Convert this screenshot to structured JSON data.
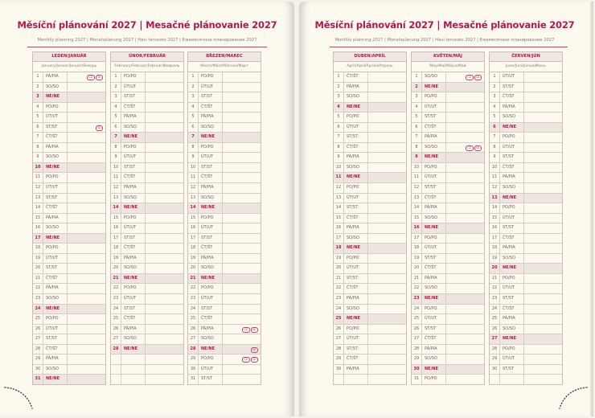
{
  "spread": {
    "left": {
      "title": "Měsíční plánování 2027 | Mesačné plánovanie 2027",
      "subtitle": "Monthly planning 2027 | Monatsplanung 2027 | Havi tervezés 2027 | Ежемесячное планирование 2027"
    },
    "right": {
      "title": "Měsíční plánování 2027 | Mesačné plánovanie 2027",
      "subtitle": "Monthly planning 2027 | Monatsplanung 2027 | Havi tervezés 2027 | Ежемесячное планирование 2027"
    }
  },
  "colors": {
    "accent": "#b3174f",
    "paper": "#fcf9ef",
    "sunday_fill": "#efe5df"
  },
  "sunday_label": "NE/NE",
  "months": [
    {
      "name": "LEDEN/JANUÁR",
      "subtitle": "January/Januar/Január/Январь",
      "days": [
        "PÁ/PIA",
        "SO/SO",
        "NE/NE",
        "PO/PO",
        "ÚT/UT",
        "ST/ST",
        "ČT/ŠT",
        "PÁ/PIA",
        "SO/SO",
        "NE/NE",
        "PO/PO",
        "ÚT/UT",
        "ST/ST",
        "ČT/ŠT",
        "PÁ/PIA",
        "SO/SO",
        "NE/NE",
        "PO/PO",
        "ÚT/UT",
        "ST/ST",
        "ČT/ŠT",
        "PÁ/PIA",
        "SO/SO",
        "NE/NE",
        "PO/PO",
        "ÚT/UT",
        "ST/ST",
        "ČT/ŠT",
        "PÁ/PIA",
        "SO/SO",
        "NE/NE"
      ],
      "holidays": {
        "1": [
          "CZ",
          "SK"
        ],
        "6": [
          "SK"
        ]
      }
    },
    {
      "name": "ÚNOR/FEBRUÁR",
      "subtitle": "February/Februar/Február/Февраль",
      "days": [
        "PO/PO",
        "ÚT/UT",
        "ST/ST",
        "ČT/ŠT",
        "PÁ/PIA",
        "SO/SO",
        "NE/NE",
        "PO/PO",
        "ÚT/UT",
        "ST/ST",
        "ČT/ŠT",
        "PÁ/PIA",
        "SO/SO",
        "NE/NE",
        "PO/PO",
        "ÚT/UT",
        "ST/ST",
        "ČT/ŠT",
        "PÁ/PIA",
        "SO/SO",
        "NE/NE",
        "PO/PO",
        "ÚT/UT",
        "ST/ST",
        "ČT/ŠT",
        "PÁ/PIA",
        "SO/SO",
        "NE/NE"
      ],
      "holidays": {}
    },
    {
      "name": "BŘEZEN/MAREC",
      "subtitle": "March/März/Március/Март",
      "days": [
        "PO/PO",
        "ÚT/UT",
        "ST/ST",
        "ČT/ŠT",
        "PÁ/PIA",
        "SO/SO",
        "NE/NE",
        "PO/PO",
        "ÚT/UT",
        "ST/ST",
        "ČT/ŠT",
        "PÁ/PIA",
        "SO/SO",
        "NE/NE",
        "PO/PO",
        "ÚT/UT",
        "ST/ST",
        "ČT/ŠT",
        "PÁ/PIA",
        "SO/SO",
        "NE/NE",
        "PO/PO",
        "ÚT/UT",
        "ST/ST",
        "ČT/ŠT",
        "PÁ/PIA",
        "SO/SO",
        "NE/NE",
        "PO/PO",
        "ÚT/UT",
        "ST/ST"
      ],
      "holidays": {
        "26": [
          "CZ",
          "SK"
        ],
        "28": [
          "SK"
        ],
        "29": [
          "CZ",
          "SK"
        ]
      }
    },
    {
      "name": "DUBEN/APRÍL",
      "subtitle": "April/April/Április/Апрель",
      "days": [
        "ČT/ŠT",
        "PÁ/PIA",
        "SO/SO",
        "NE/NE",
        "PO/PO",
        "ÚT/UT",
        "ST/ST",
        "ČT/ŠT",
        "PÁ/PIA",
        "SO/SO",
        "NE/NE",
        "PO/PO",
        "ÚT/UT",
        "ST/ST",
        "ČT/ŠT",
        "PÁ/PIA",
        "SO/SO",
        "NE/NE",
        "PO/PO",
        "ÚT/UT",
        "ST/ST",
        "ČT/ŠT",
        "PÁ/PIA",
        "SO/SO",
        "NE/NE",
        "PO/PO",
        "ÚT/UT",
        "ST/ST",
        "ČT/ŠT",
        "PÁ/PIA"
      ],
      "holidays": {}
    },
    {
      "name": "KVĚTEN/MÁJ",
      "subtitle": "May/Mai/Május/Май",
      "days": [
        "SO/SO",
        "NE/NE",
        "PO/PO",
        "ÚT/UT",
        "ST/ST",
        "ČT/ŠT",
        "PÁ/PIA",
        "SO/SO",
        "NE/NE",
        "PO/PO",
        "ÚT/UT",
        "ST/ST",
        "ČT/ŠT",
        "PÁ/PIA",
        "SO/SO",
        "NE/NE",
        "PO/PO",
        "ÚT/UT",
        "ST/ST",
        "ČT/ŠT",
        "PÁ/PIA",
        "SO/SO",
        "NE/NE",
        "PO/PO",
        "ÚT/UT",
        "ST/ST",
        "ČT/ŠT",
        "PÁ/PIA",
        "SO/SO",
        "NE/NE",
        "PO/PO"
      ],
      "holidays": {
        "1": [
          "CZ",
          "SK"
        ],
        "8": [
          "CZ",
          "SK"
        ]
      }
    },
    {
      "name": "ČERVEN/JÚN",
      "subtitle": "June/Juni/Június/Июнь",
      "days": [
        "ÚT/UT",
        "ST/ST",
        "ČT/ŠT",
        "PÁ/PIA",
        "SO/SO",
        "NE/NE",
        "PO/PO",
        "ÚT/UT",
        "ST/ST",
        "ČT/ŠT",
        "PÁ/PIA",
        "SO/SO",
        "NE/NE",
        "PO/PO",
        "ÚT/UT",
        "ST/ST",
        "ČT/ŠT",
        "PÁ/PIA",
        "SO/SO",
        "NE/NE",
        "PO/PO",
        "ÚT/UT",
        "ST/ST",
        "ČT/ŠT",
        "PÁ/PIA",
        "SO/SO",
        "NE/NE",
        "PO/PO",
        "ÚT/UT",
        "ST/ST"
      ],
      "holidays": {}
    }
  ]
}
